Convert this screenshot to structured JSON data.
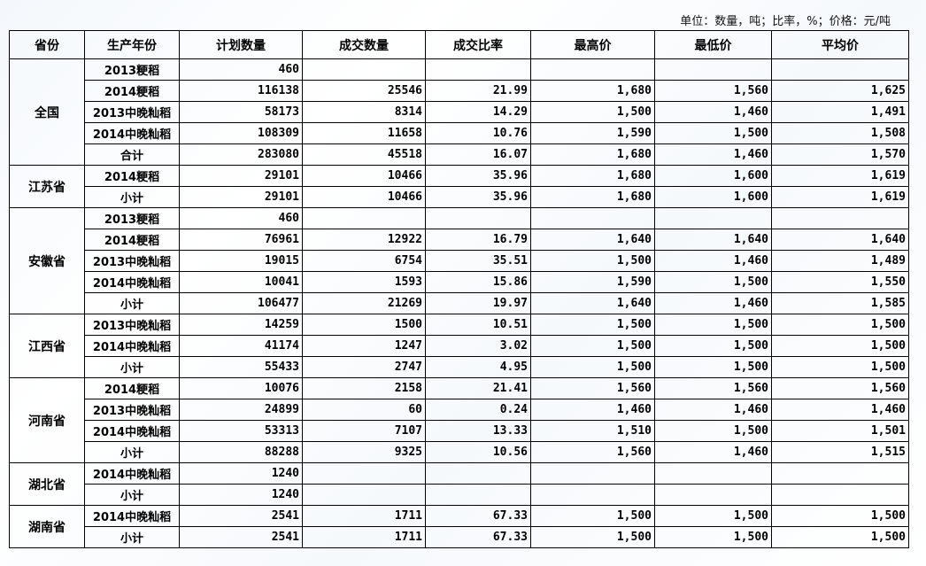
{
  "unit_note": "单位：数量，吨；比率，%；价格：元/吨",
  "headers": [
    "省份",
    "生产年份",
    "计划数量",
    "成交数量",
    "成交比率",
    "最高价",
    "最低价",
    "平均价"
  ],
  "groups": [
    {
      "province": "全国",
      "rows": [
        [
          "2013粳稻",
          "460",
          "",
          "",
          "",
          "",
          ""
        ],
        [
          "2014粳稻",
          "116138",
          "25546",
          "21.99",
          "1,680",
          "1,560",
          "1,625"
        ],
        [
          "2013中晚籼稻",
          "58173",
          "8314",
          "14.29",
          "1,500",
          "1,460",
          "1,491"
        ],
        [
          "2014中晚籼稻",
          "108309",
          "11658",
          "10.76",
          "1,590",
          "1,500",
          "1,508"
        ],
        [
          "合计",
          "283080",
          "45518",
          "16.07",
          "1,680",
          "1,460",
          "1,570"
        ]
      ]
    },
    {
      "province": "江苏省",
      "rows": [
        [
          "2014粳稻",
          "29101",
          "10466",
          "35.96",
          "1,680",
          "1,600",
          "1,619"
        ],
        [
          "小计",
          "29101",
          "10466",
          "35.96",
          "1,680",
          "1,600",
          "1,619"
        ]
      ]
    },
    {
      "province": "安徽省",
      "rows": [
        [
          "2013粳稻",
          "460",
          "",
          "",
          "",
          "",
          ""
        ],
        [
          "2014粳稻",
          "76961",
          "12922",
          "16.79",
          "1,640",
          "1,640",
          "1,640"
        ],
        [
          "2013中晚籼稻",
          "19015",
          "6754",
          "35.51",
          "1,500",
          "1,460",
          "1,489"
        ],
        [
          "2014中晚籼稻",
          "10041",
          "1593",
          "15.86",
          "1,590",
          "1,500",
          "1,550"
        ],
        [
          "小计",
          "106477",
          "21269",
          "19.97",
          "1,640",
          "1,460",
          "1,585"
        ]
      ]
    },
    {
      "province": "江西省",
      "rows": [
        [
          "2013中晚籼稻",
          "14259",
          "1500",
          "10.51",
          "1,500",
          "1,500",
          "1,500"
        ],
        [
          "2014中晚籼稻",
          "41174",
          "1247",
          "3.02",
          "1,500",
          "1,500",
          "1,500"
        ],
        [
          "小计",
          "55433",
          "2747",
          "4.95",
          "1,500",
          "1,500",
          "1,500"
        ]
      ]
    },
    {
      "province": "河南省",
      "rows": [
        [
          "2014粳稻",
          "10076",
          "2158",
          "21.41",
          "1,560",
          "1,560",
          "1,560"
        ],
        [
          "2013中晚籼稻",
          "24899",
          "60",
          "0.24",
          "1,460",
          "1,460",
          "1,460"
        ],
        [
          "2014中晚籼稻",
          "53313",
          "7107",
          "13.33",
          "1,510",
          "1,500",
          "1,501"
        ],
        [
          "小计",
          "88288",
          "9325",
          "10.56",
          "1,560",
          "1,460",
          "1,515"
        ]
      ]
    },
    {
      "province": "湖北省",
      "rows": [
        [
          "2014中晚籼稻",
          "1240",
          "",
          "",
          "",
          "",
          ""
        ],
        [
          "小计",
          "1240",
          "",
          "",
          "",
          "",
          ""
        ]
      ]
    },
    {
      "province": "湖南省",
      "rows": [
        [
          "2014中晚籼稻",
          "2541",
          "1711",
          "67.33",
          "1,500",
          "1,500",
          "1,500"
        ],
        [
          "小计",
          "2541",
          "1711",
          "67.33",
          "1,500",
          "1,500",
          "1,500"
        ]
      ]
    }
  ]
}
